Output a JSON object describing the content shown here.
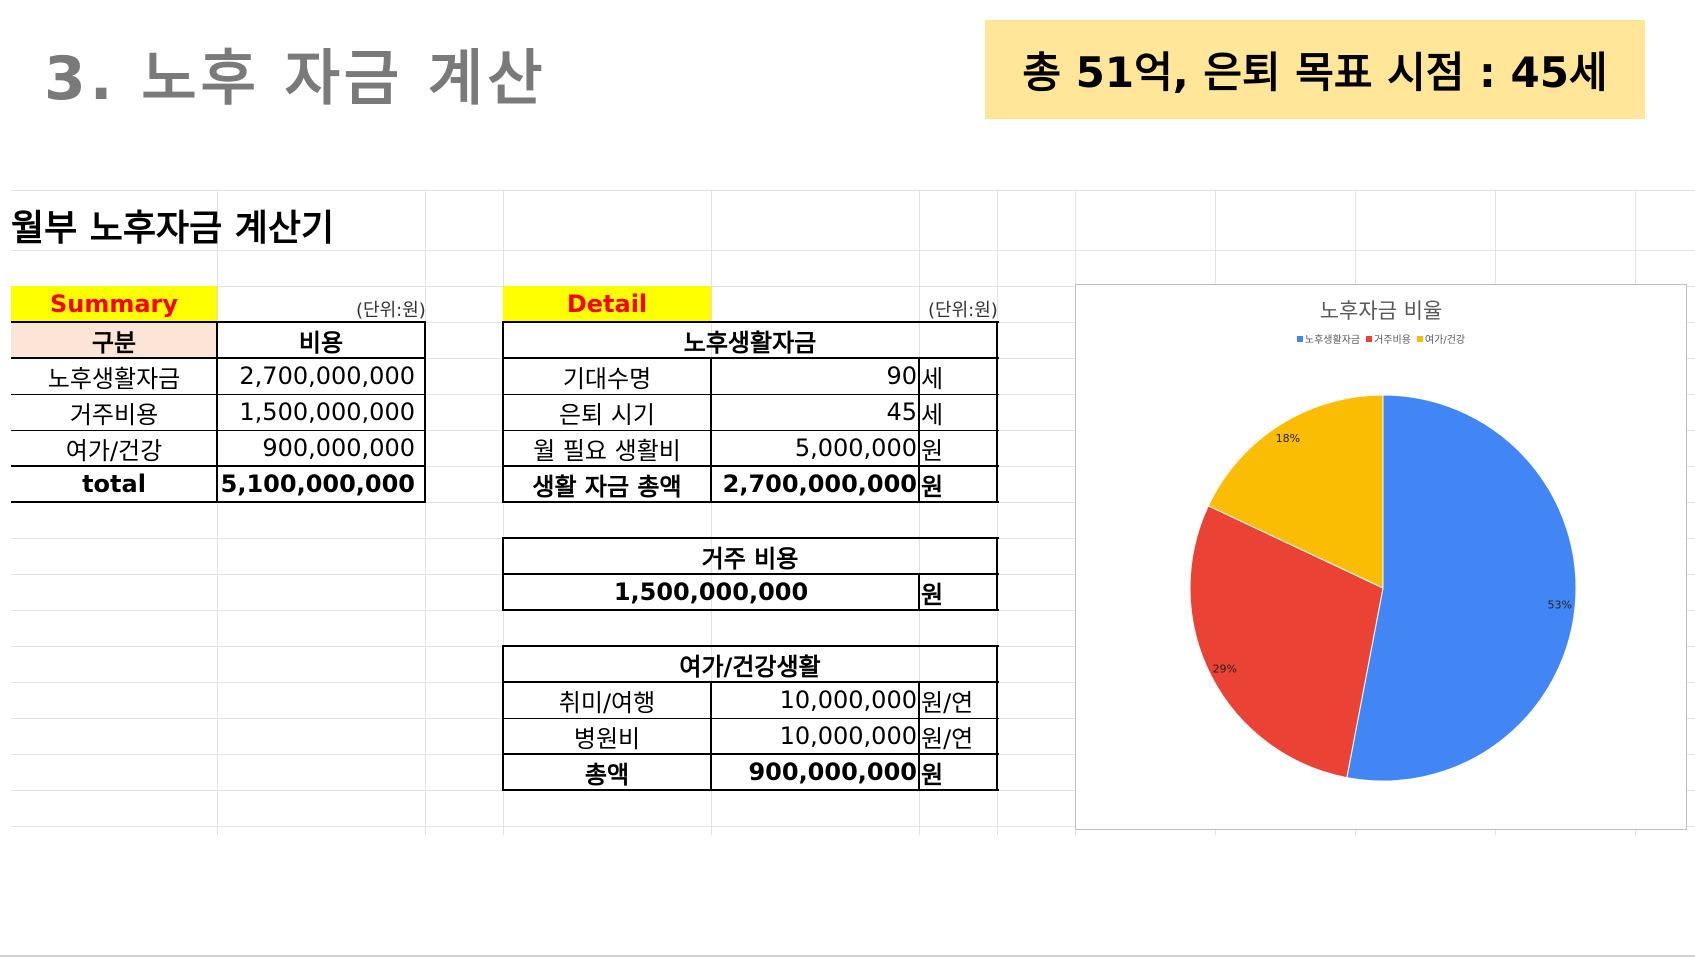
{
  "slide": {
    "title": "3. 노후 자금 계산",
    "banner": "총 51억, 은퇴 목표 시점 : 45세"
  },
  "sheet": {
    "title": "월부 노후자금 계산기",
    "summary": {
      "label": "Summary",
      "unit": "(단위:원)",
      "headers": [
        "구분",
        "비용"
      ],
      "rows": [
        {
          "name": "노후생활자금",
          "value": "2,700,000,000"
        },
        {
          "name": "거주비용",
          "value": "1,500,000,000"
        },
        {
          "name": "여가/건강",
          "value": "900,000,000"
        },
        {
          "name": "total",
          "value": "5,100,000,000"
        }
      ]
    },
    "detail": {
      "label": "Detail",
      "unit": "(단위:원)",
      "living": {
        "header": "노후생활자금",
        "rows": [
          {
            "name": "기대수명",
            "value": "90",
            "unit": "세"
          },
          {
            "name": "은퇴 시기",
            "value": "45",
            "unit": "세"
          },
          {
            "name": "월 필요 생활비",
            "value": "5,000,000",
            "unit": "원"
          },
          {
            "name": "생활 자금 총액",
            "value": "2,700,000,000",
            "unit": "원"
          }
        ]
      },
      "housing": {
        "header": "거주 비용",
        "value": "1,500,000,000",
        "unit": "원"
      },
      "leisure": {
        "header": "여가/건강생활",
        "rows": [
          {
            "name": "취미/여행",
            "value": "10,000,000",
            "unit": "원/연"
          },
          {
            "name": "병원비",
            "value": "10,000,000",
            "unit": "원/연"
          },
          {
            "name": "총액",
            "value": "900,000,000",
            "unit": "원"
          }
        ]
      }
    }
  },
  "chart_data": {
    "type": "pie",
    "title": "노후자금 비율",
    "legend_placement": "top",
    "categories": [
      "노후생활자금",
      "거주비용",
      "여가/건강"
    ],
    "values": [
      53,
      29,
      18
    ],
    "labels": [
      "53%",
      "29%",
      "18%"
    ],
    "colors": [
      "#4285f4",
      "#ea4335",
      "#fbbc04"
    ]
  }
}
